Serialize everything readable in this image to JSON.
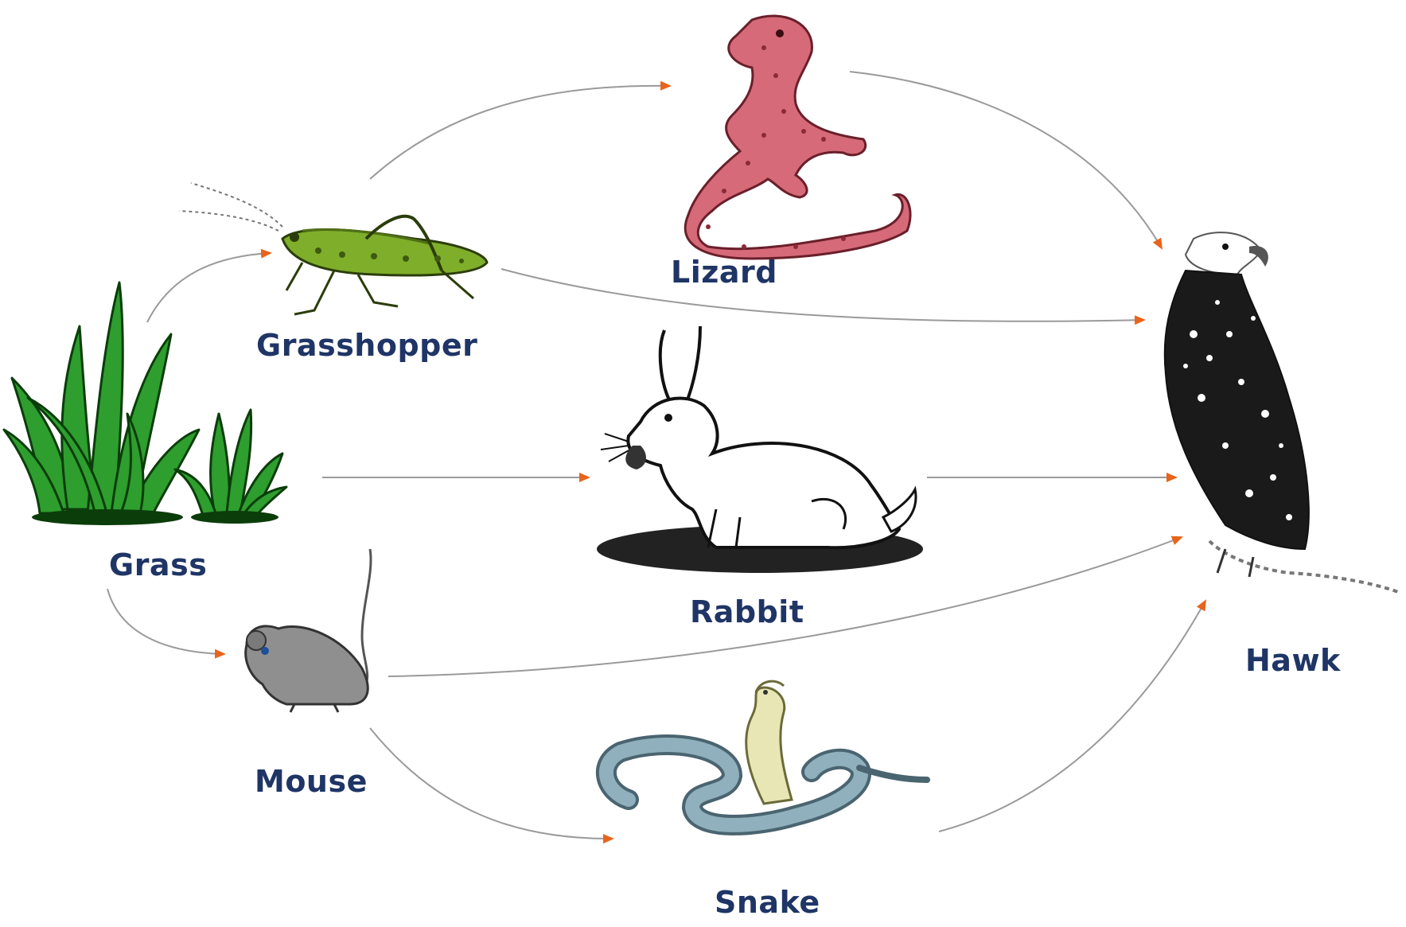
{
  "organisms": {
    "grass": "Grass",
    "grasshopper": "Grasshopper",
    "lizard": "Lizard",
    "rabbit": "Rabbit",
    "mouse": "Mouse",
    "snake": "Snake",
    "hawk": "Hawk"
  },
  "links": [
    {
      "from": "grass",
      "to": "grasshopper"
    },
    {
      "from": "grass",
      "to": "rabbit"
    },
    {
      "from": "grass",
      "to": "mouse"
    },
    {
      "from": "grasshopper",
      "to": "lizard"
    },
    {
      "from": "grasshopper",
      "to": "hawk"
    },
    {
      "from": "lizard",
      "to": "hawk"
    },
    {
      "from": "rabbit",
      "to": "hawk"
    },
    {
      "from": "mouse",
      "to": "hawk"
    },
    {
      "from": "mouse",
      "to": "snake"
    },
    {
      "from": "snake",
      "to": "hawk"
    }
  ],
  "colors": {
    "label": "#1f3566",
    "arrow_line": "#9a9a9a",
    "arrow_head": "#e8641b",
    "grass": "#2e9e2e",
    "grasshopper": "#7fae2a",
    "lizard": "#d66a78",
    "mouse": "#8f8f8f",
    "snake": "#7f9aa6",
    "hawk": "#222222"
  }
}
